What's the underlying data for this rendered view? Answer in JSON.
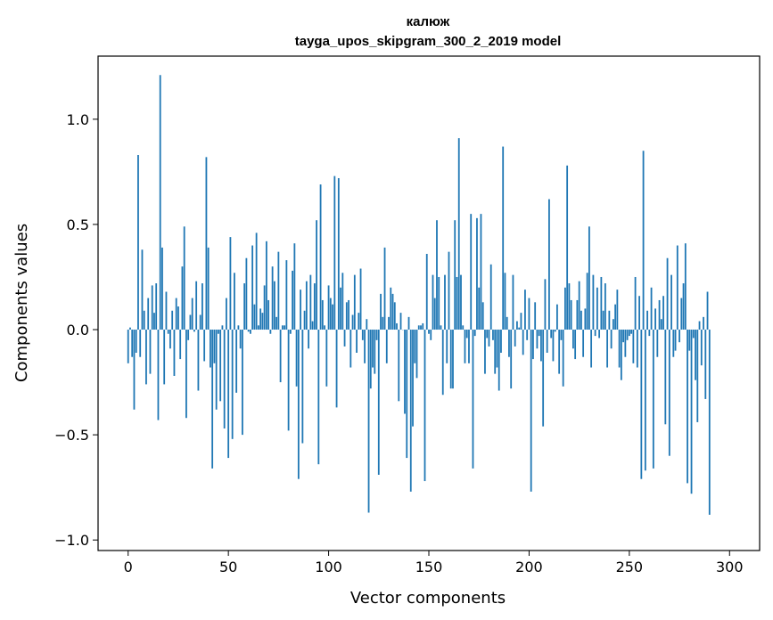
{
  "chart_data": {
    "type": "bar",
    "title": "калюж",
    "subtitle": "tayga_upos_skipgram_300_2_2019 model",
    "xlabel": "Vector components",
    "ylabel": "Components values",
    "xlim": [
      -15,
      315
    ],
    "ylim": [
      -1.05,
      1.3
    ],
    "xticks": [
      0,
      50,
      100,
      150,
      200,
      250,
      300
    ],
    "yticks": [
      -1.0,
      -0.5,
      0.0,
      0.5,
      1.0
    ],
    "xtick_labels": [
      "0",
      "50",
      "100",
      "150",
      "200",
      "250",
      "300"
    ],
    "ytick_labels": [
      "−1.0",
      "−0.5",
      "0.0",
      "0.5",
      "1.0"
    ],
    "bar_color": "#1f77b4",
    "series": [
      {
        "name": "калюж",
        "x_start": 0,
        "values": [
          -0.16,
          0.01,
          -0.13,
          -0.38,
          -0.11,
          0.83,
          -0.13,
          0.38,
          0.09,
          -0.26,
          0.15,
          -0.21,
          0.21,
          0.08,
          0.22,
          -0.43,
          1.21,
          0.39,
          -0.26,
          0.18,
          -0.02,
          -0.09,
          0.09,
          -0.22,
          0.15,
          0.11,
          -0.14,
          0.3,
          0.49,
          -0.42,
          -0.05,
          0.07,
          0.15,
          -0.01,
          0.23,
          -0.29,
          0.07,
          0.22,
          -0.15,
          0.82,
          0.39,
          -0.18,
          -0.66,
          -0.16,
          -0.38,
          -0.02,
          -0.34,
          0.02,
          -0.47,
          0.15,
          -0.61,
          0.44,
          -0.52,
          0.27,
          -0.3,
          0.02,
          -0.09,
          -0.5,
          0.22,
          0.34,
          -0.01,
          -0.02,
          0.4,
          0.12,
          0.46,
          0.02,
          0.1,
          0.08,
          0.21,
          0.42,
          0.14,
          -0.02,
          0.3,
          0.23,
          0.06,
          0.37,
          -0.25,
          0.02,
          0.02,
          0.33,
          -0.48,
          -0.02,
          0.28,
          0.41,
          -0.27,
          -0.71,
          0.19,
          -0.54,
          0.09,
          0.23,
          -0.09,
          0.26,
          0.04,
          0.22,
          0.52,
          -0.64,
          0.69,
          0.14,
          0.02,
          -0.27,
          0.21,
          0.15,
          0.12,
          0.73,
          -0.37,
          0.72,
          0.2,
          0.27,
          -0.08,
          0.13,
          0.14,
          -0.18,
          0.07,
          0.26,
          -0.11,
          0.08,
          0.29,
          -0.05,
          -0.16,
          0.05,
          -0.87,
          -0.28,
          -0.18,
          -0.21,
          -0.05,
          -0.69,
          0.17,
          0.06,
          0.39,
          -0.16,
          0.06,
          0.2,
          0.17,
          0.13,
          0.03,
          -0.34,
          0.08,
          0.0,
          -0.4,
          -0.61,
          0.06,
          -0.77,
          -0.46,
          -0.16,
          -0.23,
          0.02,
          0.02,
          0.03,
          -0.72,
          0.36,
          -0.02,
          -0.05,
          0.26,
          0.15,
          0.52,
          0.25,
          0.02,
          -0.31,
          0.26,
          -0.16,
          0.37,
          -0.28,
          -0.28,
          0.52,
          0.25,
          0.91,
          0.26,
          0.02,
          -0.16,
          -0.04,
          -0.16,
          0.55,
          -0.66,
          -0.03,
          0.53,
          0.2,
          0.55,
          0.13,
          -0.21,
          -0.04,
          -0.08,
          0.31,
          -0.05,
          -0.21,
          -0.18,
          -0.29,
          -0.11,
          0.87,
          0.27,
          0.06,
          -0.13,
          -0.28,
          0.26,
          -0.08,
          0.04,
          0.01,
          0.08,
          -0.12,
          0.19,
          -0.05,
          0.15,
          -0.77,
          -0.14,
          0.13,
          -0.09,
          -0.03,
          -0.15,
          -0.46,
          0.24,
          -0.11,
          0.62,
          -0.04,
          -0.15,
          -0.01,
          0.12,
          -0.21,
          -0.05,
          -0.27,
          0.2,
          0.78,
          0.22,
          0.14,
          -0.09,
          -0.14,
          0.14,
          0.23,
          0.09,
          -0.13,
          0.1,
          0.27,
          0.49,
          -0.18,
          0.26,
          -0.03,
          0.2,
          -0.04,
          0.25,
          0.09,
          0.22,
          -0.18,
          0.09,
          -0.09,
          0.05,
          0.12,
          0.19,
          -0.18,
          -0.24,
          -0.06,
          -0.13,
          -0.05,
          -0.03,
          -0.02,
          -0.16,
          0.25,
          -0.18,
          0.16,
          -0.71,
          0.85,
          -0.67,
          0.09,
          -0.03,
          0.2,
          -0.66,
          0.1,
          -0.13,
          0.14,
          0.05,
          0.16,
          -0.45,
          0.34,
          -0.6,
          0.26,
          -0.13,
          -0.1,
          0.4,
          -0.06,
          0.15,
          0.22,
          0.41,
          -0.73,
          -0.1,
          -0.78,
          -0.04,
          -0.24,
          -0.44,
          0.04,
          -0.17,
          0.06,
          -0.33,
          0.18,
          -0.88
        ]
      }
    ]
  }
}
